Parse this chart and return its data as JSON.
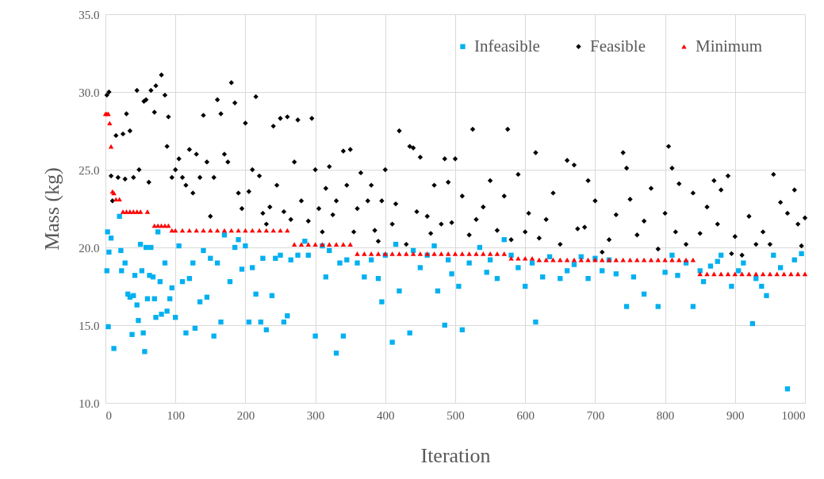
{
  "chart_data": {
    "type": "scatter",
    "xlabel": "Iteration",
    "ylabel": "Mass (kg)",
    "xlim": [
      0,
      1000
    ],
    "xticks": [
      0,
      100,
      200,
      300,
      400,
      500,
      600,
      700,
      800,
      900,
      1000
    ],
    "ylim": [
      10,
      35
    ],
    "yticks": [
      {
        "value": 10,
        "label": "10.0"
      },
      {
        "value": 15,
        "label": "15.0"
      },
      {
        "value": 20,
        "label": "20.0"
      },
      {
        "value": 25,
        "label": "25.0"
      },
      {
        "value": 30,
        "label": "30.0"
      },
      {
        "value": 35,
        "label": "35.0"
      }
    ],
    "grid": true,
    "legend": "top right",
    "series": [
      {
        "name": "Infeasible",
        "color": "#00b0f0",
        "marker": "square",
        "x": [
          2,
          3,
          4,
          5,
          8,
          12,
          20,
          22,
          23,
          28,
          32,
          35,
          38,
          40,
          42,
          45,
          47,
          50,
          52,
          54,
          56,
          58,
          60,
          63,
          65,
          68,
          70,
          72,
          75,
          78,
          80,
          85,
          88,
          92,
          95,
          100,
          105,
          110,
          115,
          120,
          125,
          128,
          135,
          140,
          145,
          150,
          155,
          160,
          165,
          170,
          178,
          185,
          190,
          195,
          200,
          205,
          210,
          215,
          222,
          225,
          230,
          238,
          243,
          250,
          255,
          260,
          265,
          275,
          285,
          290,
          300,
          310,
          315,
          320,
          330,
          335,
          340,
          345,
          360,
          370,
          380,
          390,
          395,
          400,
          410,
          415,
          420,
          435,
          440,
          450,
          460,
          470,
          475,
          485,
          490,
          495,
          505,
          510,
          520,
          535,
          545,
          550,
          560,
          570,
          580,
          590,
          600,
          610,
          615,
          625,
          635,
          650,
          660,
          670,
          680,
          690,
          700,
          710,
          720,
          730,
          745,
          755,
          770,
          790,
          800,
          810,
          818,
          830,
          840,
          850,
          855,
          865,
          875,
          880,
          895,
          905,
          912,
          925,
          930,
          938,
          945,
          955,
          965,
          975,
          985,
          995
        ],
        "values": [
          18.5,
          21.0,
          14.9,
          19.7,
          20.6,
          13.5,
          22.0,
          19.8,
          18.5,
          19.0,
          17.0,
          16.8,
          14.4,
          16.9,
          18.2,
          16.3,
          15.3,
          20.2,
          18.5,
          14.5,
          13.3,
          20.0,
          16.7,
          18.2,
          20.0,
          18.1,
          16.7,
          15.5,
          21.0,
          17.8,
          15.7,
          19.0,
          15.9,
          16.7,
          17.4,
          15.5,
          20.1,
          17.8,
          14.5,
          18.0,
          19.0,
          14.8,
          16.5,
          19.8,
          16.8,
          19.3,
          14.3,
          19.0,
          15.2,
          20.8,
          17.8,
          20.0,
          20.5,
          18.6,
          20.1,
          15.2,
          18.7,
          17.0,
          15.2,
          19.3,
          14.7,
          16.9,
          19.3,
          19.5,
          15.2,
          15.6,
          19.2,
          19.5,
          20.4,
          19.5,
          14.3,
          20.1,
          18.1,
          19.8,
          13.2,
          19.0,
          14.3,
          19.2,
          19.0,
          18.1,
          19.2,
          18.0,
          16.5,
          19.5,
          13.9,
          20.2,
          17.2,
          14.5,
          19.8,
          18.7,
          19.5,
          20.1,
          17.2,
          15.0,
          19.2,
          18.3,
          17.5,
          14.7,
          19.0,
          20.0,
          18.4,
          19.2,
          18.0,
          20.5,
          19.5,
          18.7,
          17.5,
          19.0,
          15.2,
          18.1,
          19.4,
          18.0,
          18.5,
          18.9,
          19.4,
          18.0,
          19.3,
          18.5,
          19.2,
          18.3,
          16.2,
          18.1,
          17.0,
          16.2,
          18.4,
          19.5,
          18.2,
          19.0,
          16.2,
          18.5,
          17.8,
          18.8,
          19.1,
          19.5,
          17.5,
          18.5,
          19.0,
          15.1,
          18.0,
          17.5,
          16.9,
          19.5,
          18.7,
          10.9,
          19.2,
          19.6
        ]
      },
      {
        "name": "Feasible",
        "color": "#000000",
        "marker": "diamond",
        "x": [
          2,
          5,
          8,
          10,
          15,
          18,
          25,
          28,
          30,
          35,
          40,
          45,
          48,
          55,
          58,
          62,
          65,
          70,
          72,
          80,
          85,
          88,
          90,
          95,
          100,
          105,
          110,
          115,
          120,
          125,
          130,
          135,
          140,
          145,
          150,
          155,
          160,
          165,
          170,
          175,
          180,
          185,
          190,
          195,
          200,
          205,
          210,
          215,
          220,
          225,
          230,
          235,
          240,
          245,
          250,
          255,
          260,
          265,
          270,
          275,
          280,
          290,
          295,
          300,
          305,
          310,
          315,
          320,
          325,
          330,
          340,
          345,
          350,
          355,
          360,
          365,
          375,
          380,
          385,
          390,
          395,
          400,
          410,
          415,
          420,
          430,
          435,
          440,
          445,
          450,
          460,
          465,
          470,
          480,
          485,
          490,
          495,
          500,
          510,
          520,
          525,
          530,
          540,
          550,
          560,
          570,
          575,
          580,
          590,
          600,
          605,
          615,
          620,
          630,
          640,
          650,
          660,
          670,
          675,
          685,
          690,
          700,
          710,
          720,
          730,
          740,
          745,
          750,
          760,
          770,
          780,
          790,
          800,
          805,
          810,
          815,
          820,
          830,
          840,
          850,
          860,
          870,
          875,
          880,
          890,
          895,
          900,
          910,
          920,
          930,
          940,
          950,
          955,
          965,
          975,
          985,
          990,
          995,
          1000
        ],
        "values": [
          29.8,
          30.0,
          24.6,
          23.0,
          27.2,
          24.5,
          27.3,
          24.4,
          28.6,
          27.5,
          24.5,
          30.1,
          25.0,
          29.4,
          29.5,
          24.2,
          30.1,
          28.7,
          30.4,
          31.1,
          29.8,
          26.5,
          28.4,
          24.5,
          25.0,
          25.7,
          24.5,
          24.0,
          26.3,
          23.5,
          26.0,
          24.5,
          28.5,
          25.5,
          22.0,
          24.5,
          29.5,
          28.6,
          26.0,
          25.5,
          30.6,
          29.3,
          23.5,
          22.5,
          28.0,
          23.6,
          25.0,
          29.7,
          24.6,
          22.2,
          21.5,
          22.6,
          27.8,
          24.0,
          28.3,
          22.3,
          28.4,
          21.8,
          25.5,
          28.2,
          23.0,
          21.7,
          28.3,
          25.0,
          22.5,
          21.0,
          23.8,
          25.2,
          22.1,
          23.0,
          26.2,
          24.0,
          26.3,
          21.0,
          22.5,
          24.8,
          23.0,
          24.0,
          21.1,
          20.4,
          23.0,
          25.0,
          21.5,
          22.8,
          27.5,
          20.2,
          26.5,
          26.4,
          22.3,
          25.8,
          22.0,
          20.9,
          24.0,
          21.5,
          25.7,
          24.2,
          21.6,
          25.7,
          23.3,
          20.8,
          27.6,
          21.8,
          22.6,
          24.3,
          21.1,
          23.3,
          27.6,
          20.5,
          24.7,
          21.0,
          22.2,
          26.1,
          20.6,
          21.8,
          23.5,
          20.2,
          25.6,
          25.3,
          21.2,
          21.3,
          24.3,
          23.0,
          19.7,
          20.5,
          22.1,
          26.1,
          25.1,
          23.1,
          20.8,
          21.7,
          23.8,
          19.9,
          22.2,
          26.5,
          25.1,
          21.0,
          24.1,
          20.2,
          23.5,
          20.9,
          22.6,
          24.3,
          21.5,
          23.7,
          24.6,
          19.6,
          20.7,
          19.5,
          22.0,
          20.2,
          21.0,
          20.2,
          24.7,
          22.9,
          22.2,
          23.7,
          21.5,
          20.1,
          21.9
        ]
      },
      {
        "name": "Minimum",
        "color": "#ff0000",
        "marker": "triangle",
        "x": [
          0,
          2,
          4,
          6,
          8,
          10,
          12,
          15,
          20,
          25,
          30,
          35,
          40,
          45,
          50,
          60,
          70,
          75,
          80,
          85,
          90,
          95,
          100,
          110,
          120,
          130,
          140,
          150,
          160,
          170,
          180,
          190,
          200,
          210,
          220,
          230,
          240,
          250,
          260,
          270,
          280,
          290,
          300,
          310,
          320,
          330,
          340,
          350,
          360,
          370,
          380,
          390,
          400,
          410,
          420,
          430,
          440,
          450,
          460,
          470,
          480,
          490,
          500,
          510,
          520,
          530,
          540,
          550,
          560,
          570,
          580,
          590,
          600,
          610,
          620,
          630,
          640,
          650,
          660,
          670,
          680,
          690,
          700,
          710,
          720,
          730,
          740,
          750,
          760,
          770,
          780,
          790,
          800,
          810,
          820,
          830,
          840,
          850,
          860,
          870,
          880,
          890,
          900,
          910,
          920,
          930,
          940,
          950,
          960,
          970,
          980,
          990,
          1000
        ],
        "values": [
          28.6,
          28.6,
          28.6,
          28.0,
          26.5,
          23.6,
          23.5,
          23.1,
          23.1,
          22.3,
          22.3,
          22.3,
          22.3,
          22.3,
          22.3,
          22.3,
          21.4,
          21.4,
          21.4,
          21.4,
          21.4,
          21.1,
          21.1,
          21.1,
          21.1,
          21.1,
          21.1,
          21.1,
          21.1,
          21.1,
          21.1,
          21.1,
          21.1,
          21.1,
          21.1,
          21.1,
          21.1,
          21.1,
          21.1,
          20.2,
          20.2,
          20.2,
          20.2,
          20.2,
          20.2,
          20.2,
          20.2,
          20.2,
          19.6,
          19.6,
          19.6,
          19.6,
          19.6,
          19.6,
          19.6,
          19.6,
          19.6,
          19.6,
          19.6,
          19.6,
          19.6,
          19.6,
          19.6,
          19.6,
          19.6,
          19.6,
          19.6,
          19.6,
          19.6,
          19.6,
          19.3,
          19.3,
          19.3,
          19.3,
          19.2,
          19.2,
          19.2,
          19.2,
          19.2,
          19.2,
          19.2,
          19.2,
          19.2,
          19.2,
          19.2,
          19.2,
          19.2,
          19.2,
          19.2,
          19.2,
          19.2,
          19.2,
          19.2,
          19.2,
          19.2,
          19.2,
          19.2,
          18.3,
          18.3,
          18.3,
          18.3,
          18.3,
          18.3,
          18.3,
          18.3,
          18.3,
          18.3,
          18.3,
          18.3,
          18.3,
          18.3,
          18.3,
          18.3
        ]
      }
    ]
  }
}
